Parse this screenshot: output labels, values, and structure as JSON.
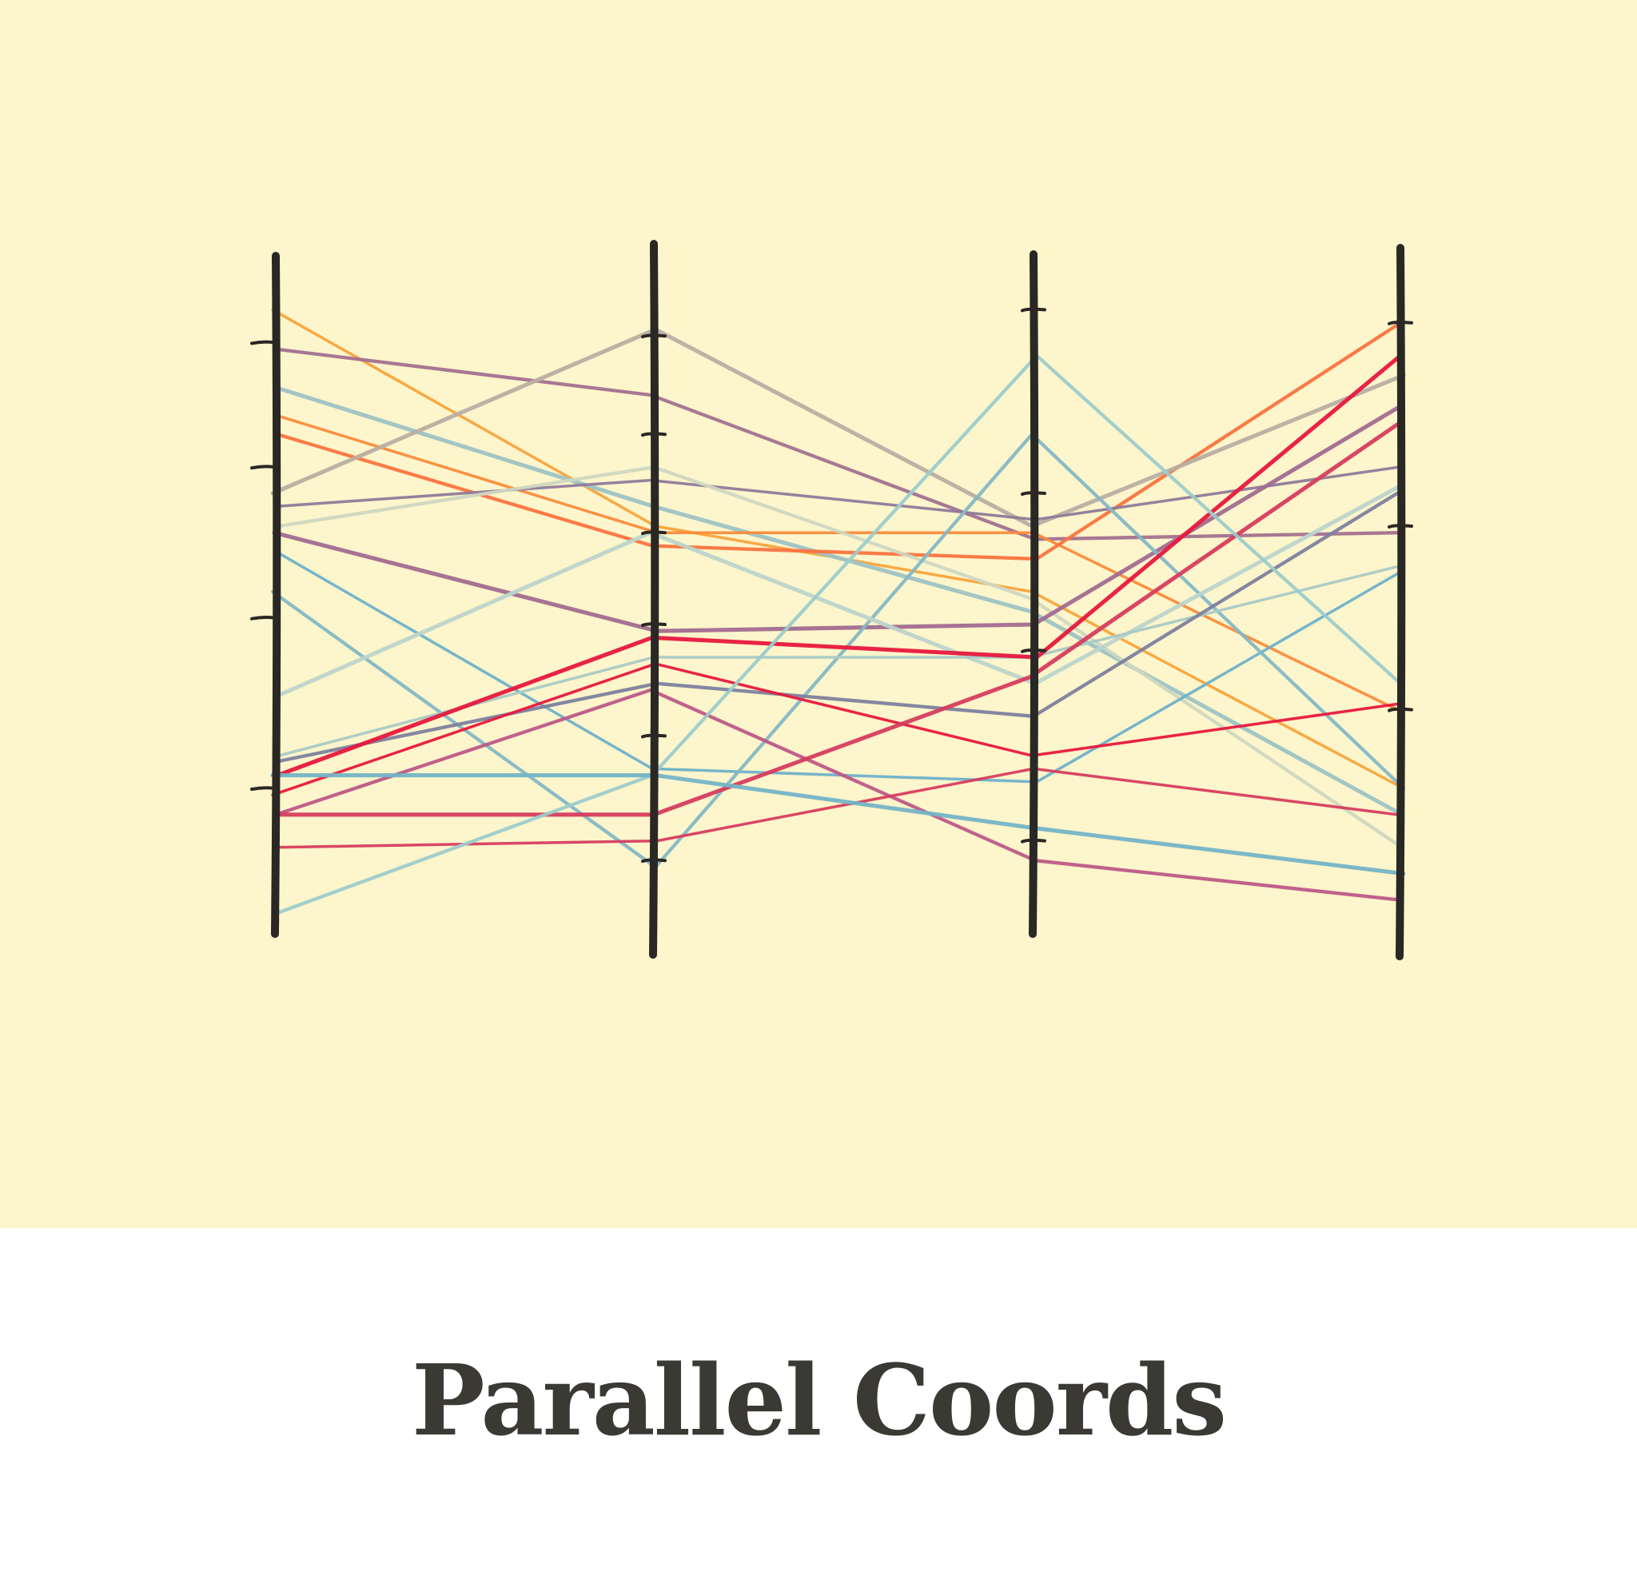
{
  "title": "Parallel Coords",
  "colors": {
    "background": "#fdf5cb",
    "axis": "#2a2824",
    "title": "#3b3934"
  },
  "chart_data": {
    "type": "parallel-coordinates",
    "axes": 4,
    "value_range": [
      0,
      10
    ],
    "lines": [
      {
        "color": "#f9a33a",
        "values": [
          9.3,
          6.0,
          5.0,
          2.0
        ]
      },
      {
        "color": "#a3708f",
        "values": [
          8.7,
          8.0,
          5.8,
          5.9
        ]
      },
      {
        "color": "#9ec3c4",
        "values": [
          8.1,
          6.3,
          4.7,
          1.6
        ]
      },
      {
        "color": "#fb8a3a",
        "values": [
          7.7,
          5.9,
          5.9,
          3.2
        ]
      },
      {
        "color": "#fa733f",
        "values": [
          7.4,
          5.7,
          5.5,
          9.1
        ]
      },
      {
        "color": "#b9aea2",
        "values": [
          6.5,
          9.0,
          6.0,
          8.3
        ]
      },
      {
        "color": "#8f7a99",
        "values": [
          6.3,
          6.7,
          6.1,
          6.9
        ]
      },
      {
        "color": "#cfd7c0",
        "values": [
          6.0,
          6.9,
          4.9,
          1.1
        ]
      },
      {
        "color": "#a26b90",
        "values": [
          5.9,
          4.4,
          4.5,
          7.8
        ]
      },
      {
        "color": "#6eb1c9",
        "values": [
          5.6,
          2.3,
          2.1,
          5.3
        ]
      },
      {
        "color": "#84b8c5",
        "values": [
          5.0,
          0.8,
          7.4,
          2.0
        ]
      },
      {
        "color": "#bcd4cb",
        "values": [
          3.4,
          5.9,
          3.6,
          6.6
        ]
      },
      {
        "color": "#a9cac5",
        "values": [
          2.5,
          4.0,
          4.0,
          5.4
        ]
      },
      {
        "color": "#7d819e",
        "values": [
          2.4,
          3.6,
          3.1,
          6.5
        ]
      },
      {
        "color": "#e8173d",
        "values": [
          2.2,
          4.3,
          4.0,
          8.6
        ]
      },
      {
        "color": "#e8173d",
        "values": [
          1.9,
          3.9,
          2.5,
          3.3
        ]
      },
      {
        "color": "#bd5887",
        "values": [
          1.6,
          3.5,
          0.9,
          0.3
        ]
      },
      {
        "color": "#d73c5e",
        "values": [
          1.6,
          1.6,
          3.7,
          7.6
        ]
      },
      {
        "color": "#d73c5e",
        "values": [
          1.1,
          1.2,
          2.3,
          1.6
        ]
      },
      {
        "color": "#9ccccb",
        "values": [
          0.1,
          2.2,
          8.6,
          3.6
        ]
      },
      {
        "color": "#74b4c6",
        "values": [
          2.2,
          2.2,
          1.4,
          0.7
        ]
      }
    ]
  }
}
